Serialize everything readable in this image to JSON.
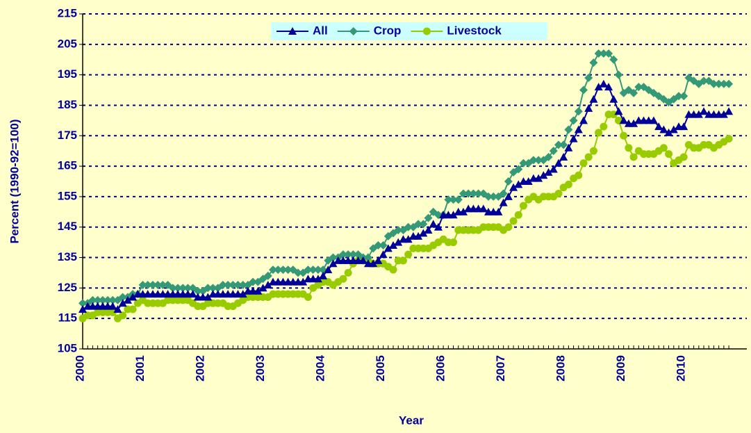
{
  "chart_data": {
    "type": "line",
    "legend": {
      "position": "top"
    },
    "xlabel": "Year",
    "ylabel": "Percent (1990-92=100)",
    "ylim": [
      105,
      215
    ],
    "yticks": [
      105,
      115,
      125,
      135,
      145,
      155,
      165,
      175,
      185,
      195,
      205,
      215
    ],
    "grid": true,
    "categories": [
      "2000",
      null,
      null,
      null,
      null,
      null,
      null,
      null,
      null,
      null,
      null,
      null,
      "2001",
      null,
      null,
      null,
      null,
      null,
      null,
      null,
      null,
      null,
      null,
      null,
      "2002",
      null,
      null,
      null,
      null,
      null,
      null,
      null,
      null,
      null,
      null,
      null,
      "2003",
      null,
      null,
      null,
      null,
      null,
      null,
      null,
      null,
      null,
      null,
      null,
      "2004",
      null,
      null,
      null,
      null,
      null,
      null,
      null,
      null,
      null,
      null,
      null,
      "2005",
      null,
      null,
      null,
      null,
      null,
      null,
      null,
      null,
      null,
      null,
      null,
      "2006",
      null,
      null,
      null,
      null,
      null,
      null,
      null,
      null,
      null,
      null,
      null,
      "2007",
      null,
      null,
      null,
      null,
      null,
      null,
      null,
      null,
      null,
      null,
      null,
      "2008",
      null,
      null,
      null,
      null,
      null,
      null,
      null,
      null,
      null,
      null,
      null,
      "2009",
      null,
      null,
      null,
      null,
      null,
      null,
      null,
      null,
      null,
      null,
      null,
      "2010",
      null,
      null,
      null,
      null,
      null,
      null,
      null,
      null,
      null
    ],
    "series": [
      {
        "name": "All",
        "color": "#000099",
        "marker": "triangle",
        "values": [
          118,
          119,
          119,
          119,
          119,
          119,
          119,
          118,
          120,
          121,
          122,
          123,
          123,
          123,
          123,
          123,
          123,
          123,
          123,
          123,
          123,
          123,
          123,
          122,
          122,
          122,
          123,
          123,
          123,
          123,
          123,
          123,
          123,
          124,
          124,
          124,
          125,
          126,
          127,
          127,
          127,
          127,
          127,
          127,
          127,
          128,
          128,
          128,
          129,
          131,
          133,
          134,
          134,
          134,
          134,
          134,
          134,
          133,
          133,
          134,
          136,
          138,
          139,
          140,
          141,
          141,
          142,
          142,
          143,
          144,
          146,
          145,
          149,
          149,
          149,
          150,
          150,
          151,
          151,
          151,
          151,
          150,
          150,
          150,
          153,
          155,
          158,
          159,
          160,
          160,
          161,
          161,
          162,
          163,
          164,
          166,
          168,
          171,
          174,
          177,
          180,
          184,
          187,
          191,
          192,
          191,
          187,
          183,
          180,
          179,
          179,
          180,
          180,
          180,
          180,
          178,
          177,
          176,
          177,
          178,
          178,
          182,
          182,
          182,
          183,
          182,
          182,
          182,
          182,
          183
        ]
      },
      {
        "name": "Crop",
        "color": "#339977",
        "marker": "diamond",
        "values": [
          120,
          120,
          121,
          121,
          121,
          121,
          121,
          121,
          122,
          122,
          123,
          123,
          126,
          126,
          126,
          126,
          126,
          126,
          125,
          125,
          125,
          125,
          125,
          124,
          124,
          125,
          125,
          125,
          126,
          126,
          126,
          126,
          126,
          126,
          127,
          127,
          128,
          129,
          131,
          131,
          131,
          131,
          131,
          130,
          130,
          131,
          131,
          131,
          131,
          134,
          135,
          135,
          136,
          136,
          136,
          136,
          135,
          135,
          138,
          139,
          139,
          142,
          143,
          144,
          144,
          145,
          145,
          146,
          146,
          148,
          150,
          149,
          149,
          154,
          154,
          154,
          156,
          156,
          156,
          156,
          156,
          155,
          155,
          155,
          156,
          160,
          163,
          164,
          166,
          166,
          167,
          167,
          167,
          168,
          170,
          172,
          172,
          177,
          180,
          183,
          190,
          194,
          199,
          202,
          202,
          202,
          200,
          195,
          189,
          190,
          189,
          191,
          191,
          190,
          189,
          188,
          187,
          186,
          187,
          188,
          188,
          194,
          193,
          192,
          193,
          193,
          192,
          192,
          192,
          192
        ]
      },
      {
        "name": "Livestock",
        "color": "#99cc00",
        "marker": "circle",
        "values": [
          115,
          116,
          116,
          117,
          117,
          117,
          117,
          115,
          116,
          118,
          118,
          120,
          121,
          120,
          120,
          120,
          120,
          121,
          121,
          121,
          121,
          121,
          120,
          119,
          119,
          120,
          120,
          120,
          120,
          119,
          119,
          120,
          121,
          122,
          122,
          122,
          122,
          122,
          123,
          123,
          123,
          123,
          123,
          123,
          123,
          122,
          125,
          126,
          127,
          127,
          126,
          127,
          128,
          130,
          133,
          134,
          134,
          134,
          133,
          133,
          133,
          132,
          131,
          134,
          134,
          136,
          138,
          138,
          138,
          138,
          139,
          140,
          141,
          140,
          140,
          144,
          144,
          144,
          144,
          144,
          145,
          145,
          145,
          145,
          144,
          145,
          147,
          149,
          152,
          154,
          155,
          154,
          155,
          155,
          155,
          156,
          158,
          159,
          161,
          162,
          166,
          168,
          170,
          176,
          178,
          182,
          182,
          180,
          175,
          171,
          168,
          170,
          169,
          169,
          169,
          170,
          171,
          169,
          166,
          167,
          168,
          172,
          171,
          171,
          172,
          172,
          171,
          172,
          173,
          174
        ]
      }
    ]
  }
}
